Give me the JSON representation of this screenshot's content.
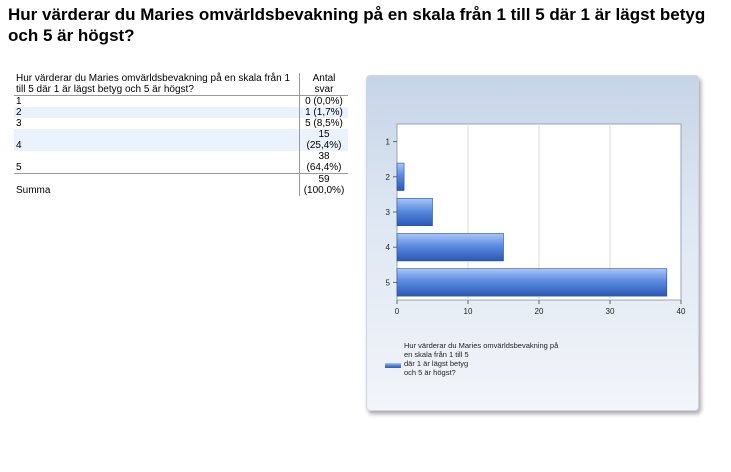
{
  "page": {
    "title": "Hur värderar du Maries omvärldsbevakning på en skala från 1 till 5 där 1 är lägst betyg och 5 är högst?"
  },
  "table": {
    "question_header": "Hur värderar du Maries omvärldsbevakning på en skala från 1 till 5 där 1 är lägst betyg och 5 är högst?",
    "count_header": "Antal svar",
    "rows": [
      {
        "label": "1",
        "value": "0 (0,0%)"
      },
      {
        "label": "2",
        "value": "1 (1,7%)"
      },
      {
        "label": "3",
        "value": "5 (8,5%)"
      },
      {
        "label": "4",
        "value": "15 (25,4%)"
      },
      {
        "label": "5",
        "value": "38 (64,4%)"
      }
    ],
    "sum_label": "Summa",
    "sum_value": "59 (100,0%)"
  },
  "chart_data": {
    "type": "bar",
    "orientation": "horizontal",
    "categories": [
      "1",
      "2",
      "3",
      "4",
      "5"
    ],
    "series": [
      {
        "name": "Hur värderar du Maries omvärldsbevakning på en skala från 1 till 5 där 1 är lägst betyg och 5 är högst?",
        "values": [
          0,
          1,
          5,
          15,
          38
        ]
      }
    ],
    "xlim": [
      0,
      40
    ],
    "xticks": [
      0,
      10,
      20,
      30,
      40
    ],
    "grid": true,
    "legend_position": "bottom",
    "colors": {
      "bar": "#3a6fd0",
      "bar_highlight": "#a9c6f5"
    }
  }
}
